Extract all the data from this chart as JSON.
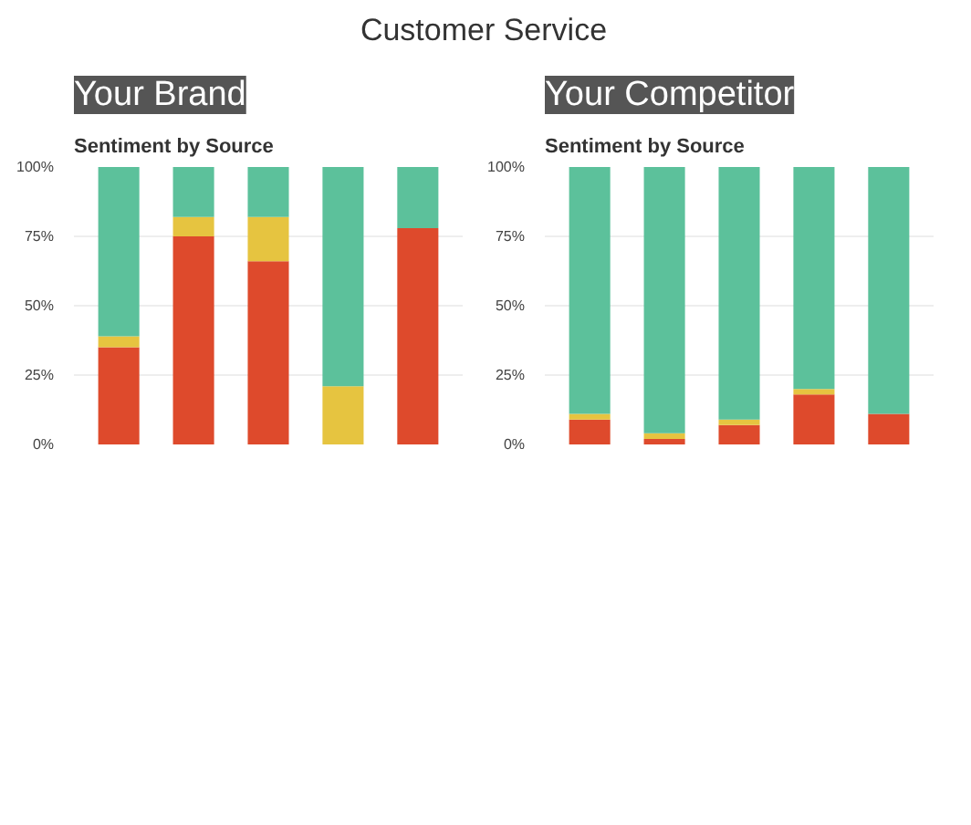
{
  "chart_data": [
    {
      "type": "bar",
      "title": "Your Brand",
      "subtitle": "Sentiment by Source",
      "annotations": [
        "Customer Service"
      ],
      "categories": [
        null,
        null,
        null,
        null,
        null
      ],
      "stacked": true,
      "ylim": [
        0,
        100
      ],
      "yticks": [
        {
          "value": 0,
          "label": "0%"
        },
        {
          "value": 25,
          "label": "25%"
        },
        {
          "value": 50,
          "label": "50%"
        },
        {
          "value": 75,
          "label": "75%"
        },
        {
          "value": 100,
          "label": "100%"
        }
      ],
      "grid": "y",
      "series": [
        {
          "color": "#de4a2c",
          "values": [
            35,
            75,
            66,
            null,
            78
          ]
        },
        {
          "color": "#e6c440",
          "values": [
            4,
            7,
            16,
            21,
            null
          ]
        },
        {
          "color": "#5cc19b",
          "values": [
            61,
            18,
            18,
            79,
            22
          ]
        }
      ]
    },
    {
      "type": "bar",
      "title": "Your Competitor",
      "subtitle": "Sentiment by Source",
      "categories": [
        null,
        null,
        null,
        null,
        null
      ],
      "stacked": true,
      "ylim": [
        0,
        100
      ],
      "yticks": [
        {
          "value": 0,
          "label": "0%"
        },
        {
          "value": 25,
          "label": "25%"
        },
        {
          "value": 50,
          "label": "50%"
        },
        {
          "value": 75,
          "label": "75%"
        },
        {
          "value": 100,
          "label": "100%"
        }
      ],
      "grid": "y",
      "series": [
        {
          "color": "#de4a2c",
          "values": [
            9,
            2,
            7,
            18,
            11
          ]
        },
        {
          "color": "#e6c440",
          "values": [
            2,
            2,
            2,
            2,
            null
          ]
        },
        {
          "color": "#5cc19b",
          "values": [
            89,
            96,
            91,
            80,
            89
          ]
        }
      ]
    }
  ]
}
